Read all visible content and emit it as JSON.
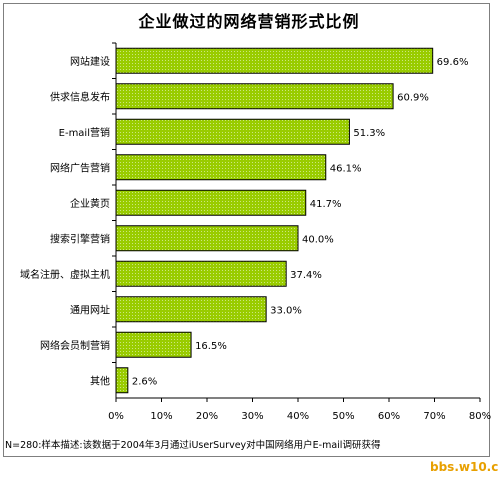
{
  "chart_data": {
    "type": "bar",
    "orientation": "horizontal",
    "title": "企业做过的网络营销形式比例",
    "categories": [
      "网站建设",
      "供求信息发布",
      "E-mail营销",
      "网络广告营销",
      "企业黄页",
      "搜索引擎营销",
      "域名注册、虚拟主机",
      "通用网址",
      "网络会员制营销",
      "其他"
    ],
    "values": [
      69.6,
      60.9,
      51.3,
      46.1,
      41.7,
      40.0,
      37.4,
      33.0,
      16.5,
      2.6
    ],
    "value_labels": [
      "69.6%",
      "60.9%",
      "51.3%",
      "46.1%",
      "41.7%",
      "40.0%",
      "37.4%",
      "33.0%",
      "16.5%",
      "2.6%"
    ],
    "xlim": [
      0,
      80
    ],
    "x_ticks": [
      0,
      10,
      20,
      30,
      40,
      50,
      60,
      70,
      80
    ],
    "x_tick_labels": [
      "0%",
      "10%",
      "20%",
      "30%",
      "40%",
      "50%",
      "60%",
      "70%",
      "80%"
    ],
    "grid": false,
    "bar_color": "#99cc00",
    "bar_pattern_color": "#cce680"
  },
  "footnote": "N=280:样本描述:该数据于2004年3月通过iUserSurvey对中国网络用户E-mail调研获得",
  "watermark": "bbs.w10.cn"
}
